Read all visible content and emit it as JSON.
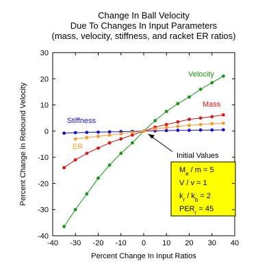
{
  "chart_data": {
    "type": "line",
    "title": [
      "Change In Ball Velocity",
      "Due To Changes In Input Parameters",
      "(mass, velocity, stiffness, and racket ER ratios)"
    ],
    "x_label": "Percent Change In Input Ratios",
    "y_label": "Percent Change In Rebound Velocity",
    "x": [
      -35,
      -30,
      -25,
      -20,
      -15,
      -10,
      -5,
      0,
      5,
      10,
      15,
      20,
      25,
      30,
      35
    ],
    "series": [
      {
        "name": "Velocity",
        "color": "#119911",
        "values": [
          -36.5,
          -30,
          -24,
          -18,
          -13,
          -8.5,
          -4.5,
          0,
          4,
          7.5,
          10.5,
          13,
          16,
          18.5,
          21
        ]
      },
      {
        "name": "Mass",
        "color": "#dd1111",
        "values": [
          -14,
          -11,
          -8.5,
          -6.5,
          -4.5,
          -3,
          -1.5,
          0,
          1.5,
          2.5,
          3.5,
          4.5,
          5,
          5.5,
          6.2
        ]
      },
      {
        "name": "Stiffness",
        "color": "#1111cc",
        "values": [
          -0.8,
          -0.6,
          -0.5,
          -0.4,
          -0.3,
          -0.2,
          -0.1,
          0,
          0.1,
          0.2,
          0.3,
          0.3,
          0.4,
          0.4,
          0.5
        ]
      },
      {
        "name": "ER",
        "color": "#ff9922",
        "values": [
          null,
          -3,
          -2.5,
          -2,
          -1.5,
          -1,
          -0.5,
          0,
          0.8,
          1.3,
          1.8,
          2.2,
          2.5,
          2.8,
          3
        ]
      }
    ],
    "xlim": [
      -40,
      40
    ],
    "xticks": [
      -40,
      -30,
      -20,
      -10,
      0,
      10,
      20,
      30,
      40
    ],
    "ylim": [
      -40,
      30
    ],
    "yticks": [
      -40,
      -30,
      -20,
      -10,
      0,
      10,
      20,
      30
    ],
    "annotation": "Initial Values",
    "box": [
      [
        "M",
        "e",
        " / m = 5"
      ],
      [
        "V / v = 1"
      ],
      [
        "k",
        "r",
        " / k",
        "b",
        " = 2"
      ],
      [
        "PER",
        "r",
        " = 45"
      ]
    ]
  }
}
